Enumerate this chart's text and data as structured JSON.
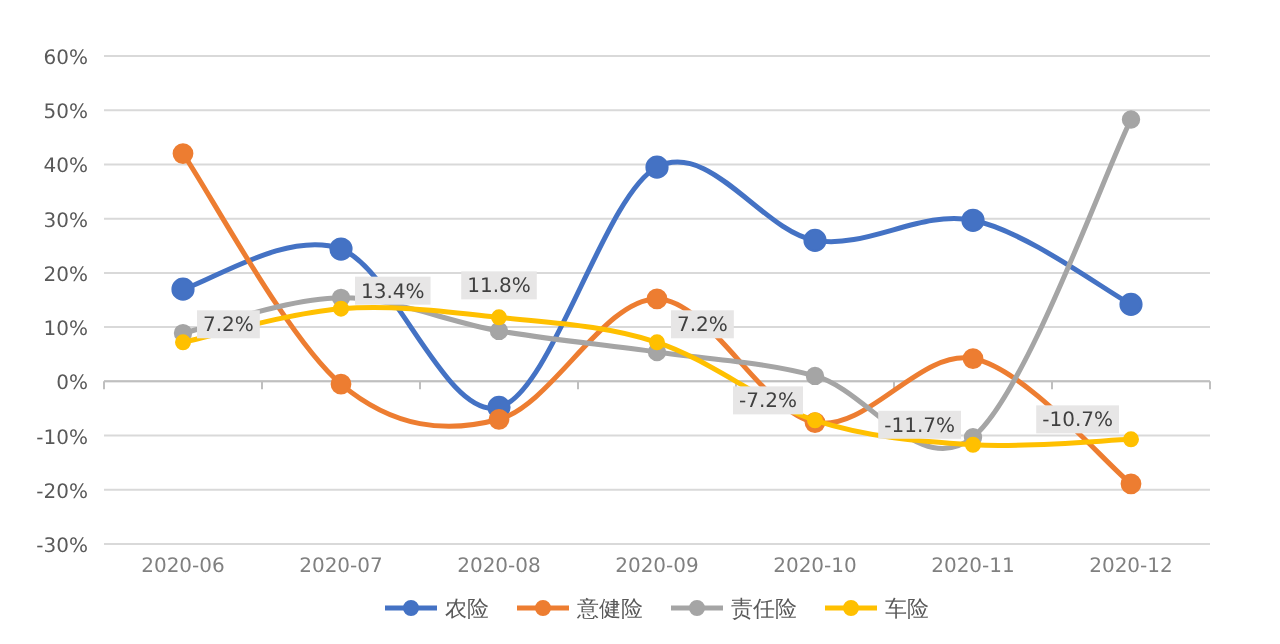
{
  "chart_data": {
    "type": "line",
    "categories": [
      "2020-06",
      "2020-07",
      "2020-08",
      "2020-09",
      "2020-10",
      "2020-11",
      "2020-12"
    ],
    "series": [
      {
        "name": "农险",
        "color": "#4472c4",
        "values": [
          17,
          24.4,
          -4.8,
          39.5,
          26,
          29.7,
          14.2
        ]
      },
      {
        "name": "意健险",
        "color": "#ed7d31",
        "values": [
          42,
          -0.5,
          -7,
          15.2,
          -7.6,
          4.2,
          -18.9
        ]
      },
      {
        "name": "责任险",
        "color": "#a5a5a5",
        "values": [
          8.9,
          15.4,
          9.3,
          5.4,
          1,
          -10.3,
          48.3
        ]
      },
      {
        "name": "车险",
        "color": "#ffc000",
        "values": [
          7.2,
          13.4,
          11.8,
          7.2,
          -7.2,
          -11.7,
          -10.7
        ],
        "value_labels": [
          "7.2%",
          "13.4%",
          "11.8%",
          "7.2%",
          "-7.2%",
          "-11.7%",
          "-10.7%"
        ]
      }
    ],
    "ylim": [
      -30,
      60
    ],
    "yticks": [
      {
        "value": -30,
        "label": "-30%"
      },
      {
        "value": -20,
        "label": "-20%"
      },
      {
        "value": -10,
        "label": "-10%"
      },
      {
        "value": 0,
        "label": "0%"
      },
      {
        "value": 10,
        "label": "10%"
      },
      {
        "value": 20,
        "label": "20%"
      },
      {
        "value": 30,
        "label": "30%"
      },
      {
        "value": 40,
        "label": "40%"
      },
      {
        "value": 50,
        "label": "50%"
      },
      {
        "value": 60,
        "label": "60%"
      }
    ],
    "grid": "y",
    "legend": "bottom",
    "marker": "circle",
    "line_style": "solid"
  }
}
